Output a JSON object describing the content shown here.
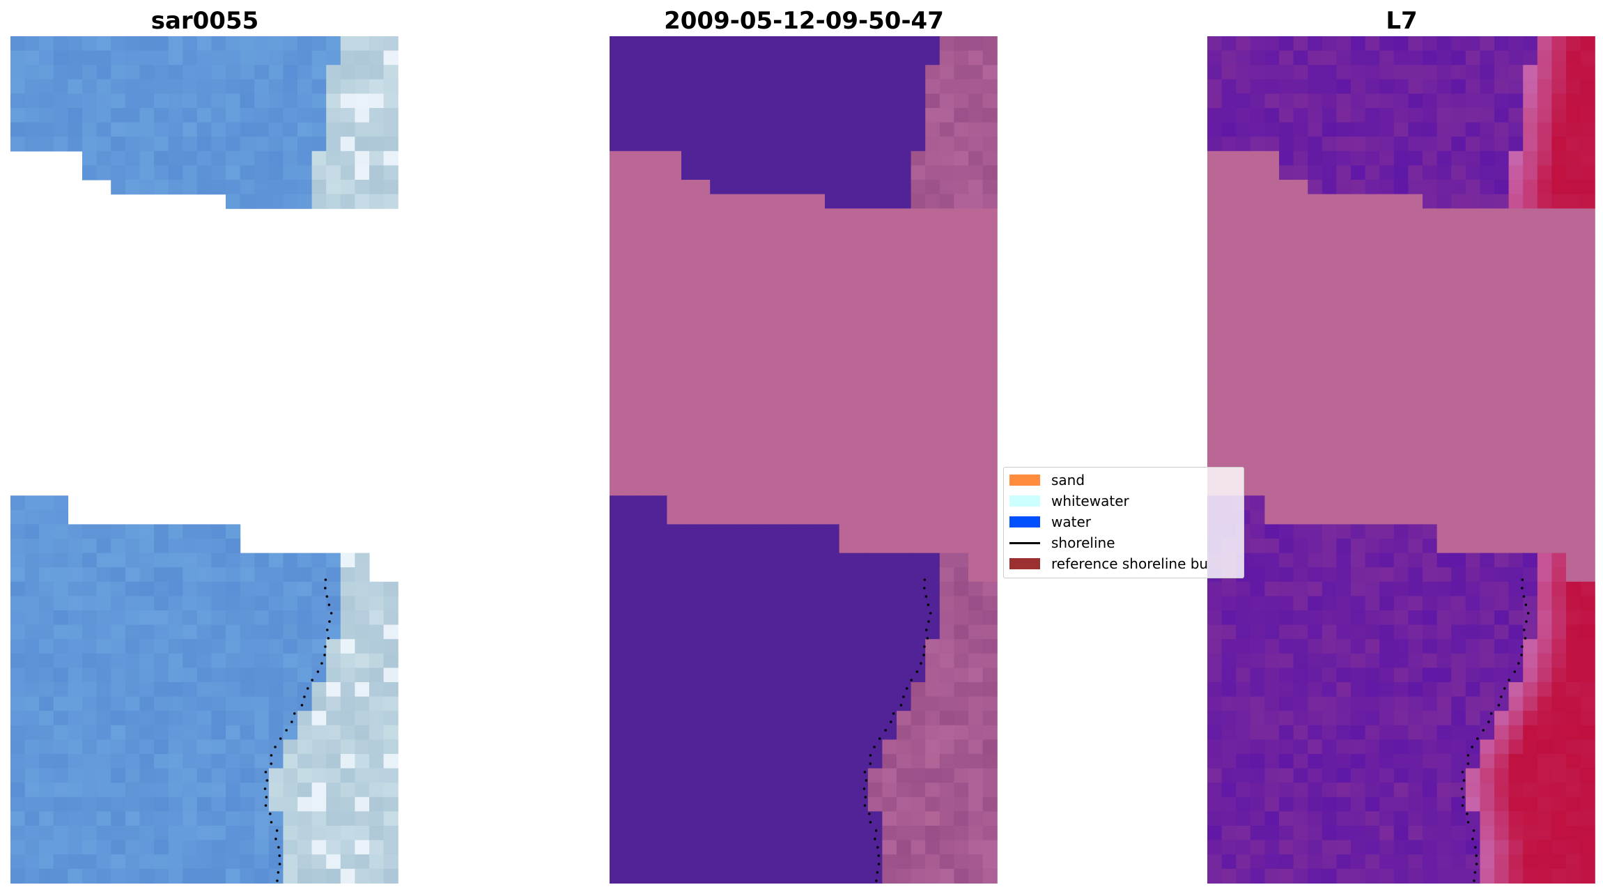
{
  "panels": [
    {
      "title": "sar0055",
      "kind": "rgb"
    },
    {
      "title": "2009-05-12-09-50-47",
      "kind": "classified"
    },
    {
      "title": "L7",
      "kind": "mndwi"
    }
  ],
  "legend": {
    "items": [
      {
        "label": "sand",
        "type": "patch",
        "color": "#ff8c3c"
      },
      {
        "label": "whitewater",
        "type": "patch",
        "color": "#ccffff"
      },
      {
        "label": "water",
        "type": "patch",
        "color": "#0050ff"
      },
      {
        "label": "shoreline",
        "type": "line",
        "color": "#000000"
      },
      {
        "label": "reference shoreline bu",
        "type": "patch",
        "color": "#9a3030"
      }
    ]
  },
  "colors": {
    "nodata_mask": "#bb6796",
    "water_class": "#522397",
    "land_overlay": "#9a4f88",
    "rgb_water": "#5b8fd5",
    "rgb_surf": "#c8dde6",
    "index_water": "#7a2a9c",
    "index_land": "#c0103f"
  }
}
